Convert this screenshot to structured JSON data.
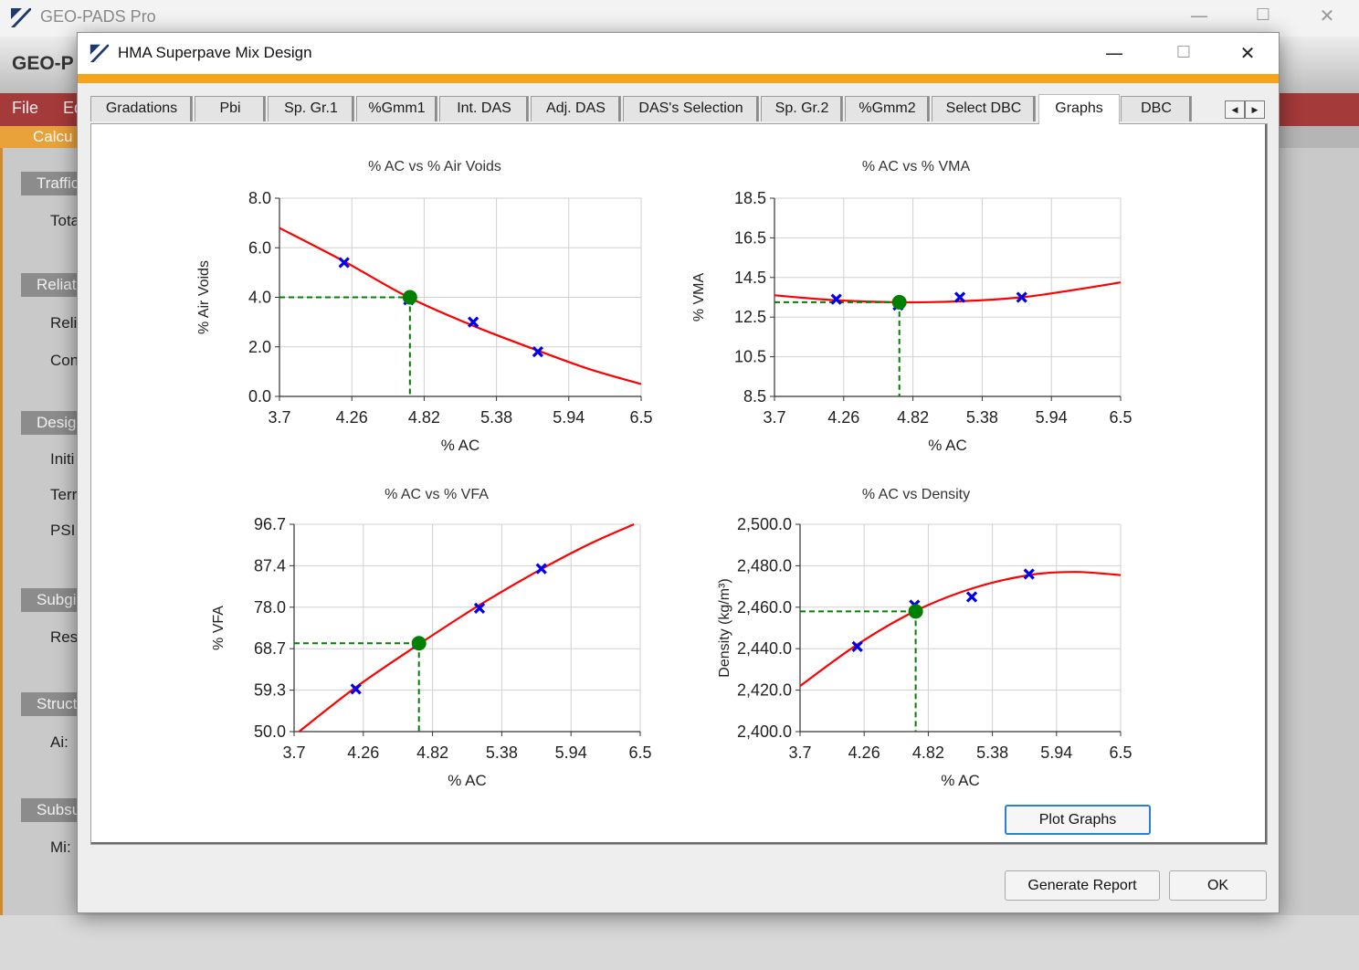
{
  "main_window": {
    "title": "GEO-PADS Pro",
    "app_header": "GEO-P",
    "menu": [
      "File",
      "Ed"
    ],
    "calc_tab": "Calcu",
    "sections": [
      {
        "label": "Traffic",
        "fields": [
          "Tota"
        ]
      },
      {
        "label": "Reliat",
        "fields": [
          "Reli",
          "Con"
        ]
      },
      {
        "label": "Desig",
        "fields": [
          "Initi",
          "Terr",
          "PSI"
        ]
      },
      {
        "label": "Subgi",
        "fields": [
          "Res"
        ]
      },
      {
        "label": "Struct",
        "fields": [
          "Ai:"
        ]
      },
      {
        "label": "Subsu",
        "fields": [
          "Mi:"
        ]
      }
    ],
    "controls": {
      "minimize": "—",
      "maximize": "☐",
      "close": "✕"
    }
  },
  "dialog": {
    "title": "HMA Superpave Mix Design",
    "controls": {
      "minimize": "—",
      "maximize": "☐",
      "close": "✕"
    },
    "accent_color": "#f5a41a",
    "tabs": [
      "Gradations",
      "Pbi",
      "Sp. Gr.1",
      "%Gmm1",
      "Int. DAS",
      "Adj. DAS",
      "DAS's Selection",
      "Sp. Gr.2",
      "%Gmm2",
      "Select DBC",
      "Graphs",
      "DBC"
    ],
    "active_tab": "Graphs",
    "tab_scroll": {
      "left": "◀",
      "right": "▶"
    },
    "buttons": {
      "plot": "Plot Graphs",
      "report": "Generate Report",
      "ok": "OK"
    }
  },
  "chart_data": [
    {
      "type": "scatter",
      "title": "% AC vs % Air Voids",
      "xlabel": "% AC",
      "ylabel": "% Air Voids",
      "x_ticks": [
        "3.7",
        "4.26",
        "4.82",
        "5.38",
        "5.94",
        "6.5"
      ],
      "y_ticks": [
        "0.0",
        "2.0",
        "4.0",
        "6.0",
        "8.0"
      ],
      "xlim": [
        3.7,
        6.5
      ],
      "ylim": [
        0,
        8
      ],
      "points": [
        {
          "x": 4.2,
          "y": 5.4
        },
        {
          "x": 4.7,
          "y": 3.9
        },
        {
          "x": 5.2,
          "y": 3.0
        },
        {
          "x": 5.7,
          "y": 1.8
        }
      ],
      "fit": [
        {
          "x": 3.7,
          "y": 6.8
        },
        {
          "x": 4.2,
          "y": 5.45
        },
        {
          "x": 4.7,
          "y": 4.0
        },
        {
          "x": 5.2,
          "y": 2.85
        },
        {
          "x": 5.7,
          "y": 1.85
        },
        {
          "x": 6.1,
          "y": 1.1
        },
        {
          "x": 6.5,
          "y": 0.5
        }
      ],
      "design": {
        "x": 4.71,
        "y": 4.0
      },
      "grid": true
    },
    {
      "type": "scatter",
      "title": "% AC vs % VMA",
      "xlabel": "% AC",
      "ylabel": "% VMA",
      "x_ticks": [
        "3.7",
        "4.26",
        "4.82",
        "5.38",
        "5.94",
        "6.5"
      ],
      "y_ticks": [
        "8.5",
        "10.5",
        "12.5",
        "14.5",
        "16.5",
        "18.5"
      ],
      "xlim": [
        3.7,
        6.5
      ],
      "ylim": [
        8.5,
        18.5
      ],
      "points": [
        {
          "x": 4.2,
          "y": 13.4
        },
        {
          "x": 4.7,
          "y": 13.1
        },
        {
          "x": 5.2,
          "y": 13.5
        },
        {
          "x": 5.7,
          "y": 13.5
        }
      ],
      "fit": [
        {
          "x": 3.7,
          "y": 13.6
        },
        {
          "x": 4.2,
          "y": 13.35
        },
        {
          "x": 4.7,
          "y": 13.25
        },
        {
          "x": 5.2,
          "y": 13.3
        },
        {
          "x": 5.7,
          "y": 13.5
        },
        {
          "x": 6.1,
          "y": 13.85
        },
        {
          "x": 6.5,
          "y": 14.25
        }
      ],
      "design": {
        "x": 4.71,
        "y": 13.25
      },
      "grid": true
    },
    {
      "type": "scatter",
      "title": "% AC vs % VFA",
      "xlabel": "% AC",
      "ylabel": "% VFA",
      "x_ticks": [
        "3.7",
        "4.26",
        "4.82",
        "5.38",
        "5.94",
        "6.5"
      ],
      "y_ticks": [
        "50.0",
        "59.3",
        "68.7",
        "78.0",
        "87.4",
        "96.7"
      ],
      "xlim": [
        3.7,
        6.5
      ],
      "ylim": [
        50,
        96.7
      ],
      "points": [
        {
          "x": 4.2,
          "y": 59.6
        },
        {
          "x": 4.7,
          "y": 69.8
        },
        {
          "x": 5.2,
          "y": 77.8
        },
        {
          "x": 5.7,
          "y": 86.7
        }
      ],
      "fit": [
        {
          "x": 3.74,
          "y": 50.0
        },
        {
          "x": 4.2,
          "y": 60.0
        },
        {
          "x": 4.7,
          "y": 69.5
        },
        {
          "x": 5.2,
          "y": 78.5
        },
        {
          "x": 5.7,
          "y": 86.6
        },
        {
          "x": 6.1,
          "y": 92.4
        },
        {
          "x": 6.45,
          "y": 96.7
        }
      ],
      "design": {
        "x": 4.71,
        "y": 69.9
      },
      "grid": true
    },
    {
      "type": "scatter",
      "title": "% AC vs Density",
      "xlabel": "% AC",
      "ylabel": "Density (kg/m³)",
      "x_ticks": [
        "3.7",
        "4.26",
        "4.82",
        "5.38",
        "5.94",
        "6.5"
      ],
      "y_ticks": [
        "2,400.0",
        "2,420.0",
        "2,440.0",
        "2,460.0",
        "2,480.0",
        "2,500.0"
      ],
      "xlim": [
        3.7,
        6.5
      ],
      "ylim": [
        2400,
        2500
      ],
      "points": [
        {
          "x": 4.2,
          "y": 2441
        },
        {
          "x": 4.7,
          "y": 2461
        },
        {
          "x": 5.2,
          "y": 2465
        },
        {
          "x": 5.7,
          "y": 2476
        }
      ],
      "fit": [
        {
          "x": 3.7,
          "y": 2422
        },
        {
          "x": 4.2,
          "y": 2442
        },
        {
          "x": 4.7,
          "y": 2458
        },
        {
          "x": 5.2,
          "y": 2469
        },
        {
          "x": 5.7,
          "y": 2475.5
        },
        {
          "x": 6.1,
          "y": 2477
        },
        {
          "x": 6.5,
          "y": 2475.5
        }
      ],
      "design": {
        "x": 4.71,
        "y": 2458
      },
      "grid": true
    }
  ],
  "colors": {
    "fit": "#ff0000",
    "points": "#0000ee",
    "design": "#008000",
    "grid": "#d0d0d0"
  }
}
